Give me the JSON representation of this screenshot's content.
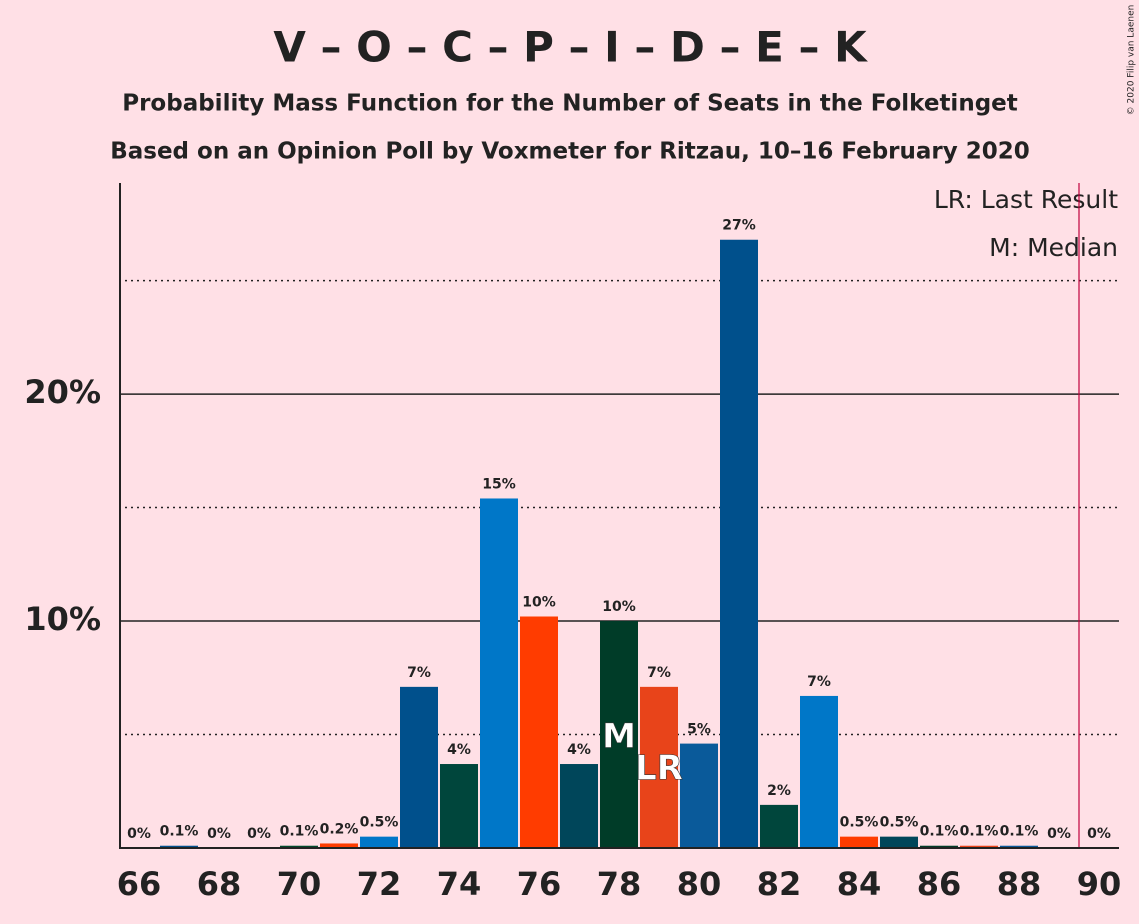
{
  "chart_data": {
    "type": "bar",
    "title": "V – O – C – P – I – D – E – K",
    "subtitle": "Probability Mass Function for the Number of Seats in the Folketinget",
    "subtitle2": "Based on an Opinion Poll by Voxmeter for Ritzau, 10–16 February 2020",
    "copyright": "© 2020 Filip van Laenen",
    "legend": [
      "LR: Last Result",
      "M: Median"
    ],
    "x": [
      66,
      67,
      68,
      69,
      70,
      71,
      72,
      73,
      74,
      75,
      76,
      77,
      78,
      79,
      80,
      81,
      82,
      83,
      84,
      85,
      86,
      87,
      88,
      89,
      90
    ],
    "values": [
      0,
      0.1,
      0,
      0,
      0.1,
      0.2,
      0.5,
      7.1,
      3.7,
      15.4,
      10.2,
      3.7,
      10.0,
      7.1,
      4.6,
      26.8,
      1.9,
      6.7,
      0.5,
      0.5,
      0.1,
      0.1,
      0.1,
      0,
      0
    ],
    "value_labels": [
      "0%",
      "0.1%",
      "0%",
      "0%",
      "0.1%",
      "0.2%",
      "0.5%",
      "7%",
      "4%",
      "15%",
      "10%",
      "4%",
      "10%",
      "7%",
      "5%",
      "27%",
      "2%",
      "7%",
      "0.5%",
      "0.5%",
      "0.1%",
      "0.1%",
      "0.1%",
      "0%",
      "0%"
    ],
    "colors": [
      "#00508c",
      "#00508c",
      "#00508c",
      "#00508c",
      "#004a2c",
      "#ff3c00",
      "#0077c8",
      "#00508c",
      "#00463c",
      "#0077c8",
      "#ff3c00",
      "#00465a",
      "#003c28",
      "#e8441a",
      "#0a5a9a",
      "#00508c",
      "#00463c",
      "#0077c8",
      "#ff3c00",
      "#00465a",
      "#003c28",
      "#e8441a",
      "#0a5a9a",
      "#00508c",
      "#00508c"
    ],
    "median": {
      "x": 78,
      "label": "M"
    },
    "last_result": {
      "x": 79,
      "label": "LR"
    },
    "majority_line": 89.5,
    "xlim": [
      65.5,
      90.5
    ],
    "xticks": [
      66,
      68,
      70,
      72,
      74,
      76,
      78,
      80,
      82,
      84,
      86,
      88,
      90
    ],
    "ylim": [
      0,
      29.3
    ],
    "yticks": [
      {
        "value": 10,
        "label": "10%"
      },
      {
        "value": 20,
        "label": "20%"
      }
    ],
    "minor_gridlines": [
      5,
      15,
      25
    ]
  }
}
